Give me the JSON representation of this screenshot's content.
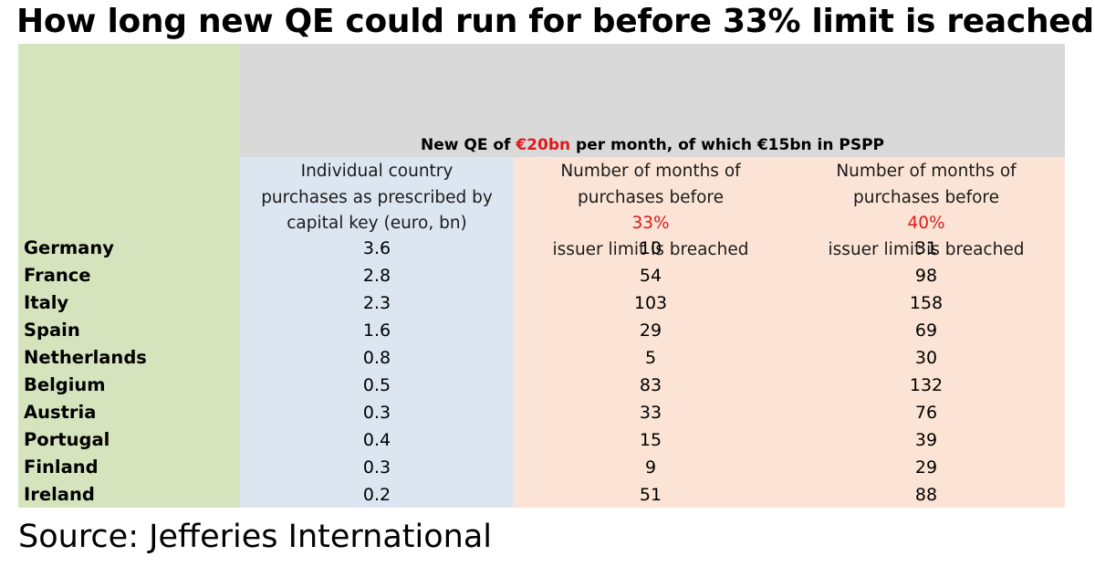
{
  "title": "How long new QE could run for before 33% limit is reached",
  "subheader": {
    "prefix": "New QE of ",
    "amount": "€20bn",
    "suffix": " per month, of which €15bn in PSPP"
  },
  "columns": [
    {
      "lines": [
        "Individual country",
        "purchases as prescribed by",
        "capital key (euro, bn)"
      ]
    },
    {
      "line1": "Number of months of",
      "line2_prefix": "purchases before ",
      "line2_highlight": "33%",
      "line3": "issuer limit is breached"
    },
    {
      "line1": "Number of months of",
      "line2_prefix": "purchases before ",
      "line2_highlight": "40%",
      "line3": "issuer limit is breached"
    }
  ],
  "source": "Source: Jefferies International",
  "chart_data": {
    "type": "table",
    "title": "How long new QE could run for before 33% limit is reached",
    "headers": [
      "",
      "Individual country purchases as prescribed by capital key (euro, bn)",
      "Number of months of purchases before 33% issuer limit is breached",
      "Number of months of purchases before 40% issuer limit is breached"
    ],
    "rows": [
      {
        "country": "Germany",
        "capital_key_purchases": "3.6",
        "months_33": "10",
        "months_40": "31"
      },
      {
        "country": "France",
        "capital_key_purchases": "2.8",
        "months_33": "54",
        "months_40": "98"
      },
      {
        "country": "Italy",
        "capital_key_purchases": "2.3",
        "months_33": "103",
        "months_40": "158"
      },
      {
        "country": "Spain",
        "capital_key_purchases": "1.6",
        "months_33": "29",
        "months_40": "69"
      },
      {
        "country": "Netherlands",
        "capital_key_purchases": "0.8",
        "months_33": "5",
        "months_40": "30"
      },
      {
        "country": "Belgium",
        "capital_key_purchases": "0.5",
        "months_33": "83",
        "months_40": "132"
      },
      {
        "country": "Austria",
        "capital_key_purchases": "0.3",
        "months_33": "33",
        "months_40": "76"
      },
      {
        "country": "Portugal",
        "capital_key_purchases": "0.4",
        "months_33": "15",
        "months_40": "39"
      },
      {
        "country": "Finland",
        "capital_key_purchases": "0.3",
        "months_33": "9",
        "months_40": "29"
      },
      {
        "country": "Ireland",
        "capital_key_purchases": "0.2",
        "months_33": "51",
        "months_40": "88"
      }
    ]
  },
  "colors": {
    "country_column": "#d6e4bd",
    "header_band": "#d9d9d9",
    "capital_key_column": "#dce6f1",
    "months_columns": "#fbe4d5",
    "highlight": "#e0191b"
  }
}
